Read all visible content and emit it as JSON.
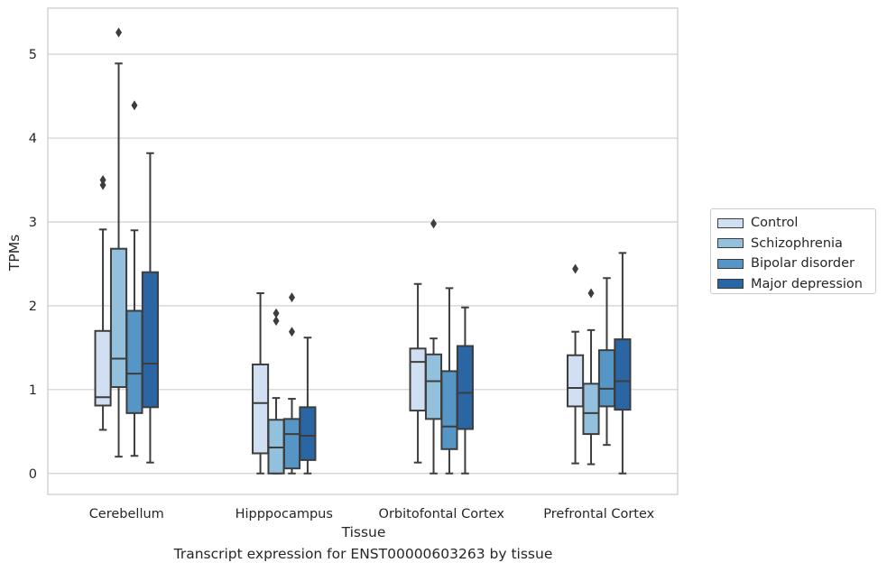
{
  "caption": "Transcript expression for ENST00000603263 by tissue",
  "chart_data": {
    "type": "boxplot",
    "xlabel": "Tissue",
    "ylabel": "TPMs",
    "ylim": [
      -0.25,
      5.55
    ],
    "yticks": [
      0,
      1,
      2,
      3,
      4,
      5
    ],
    "grid": true,
    "legend_position": "right",
    "categories": [
      "Cerebellum",
      "Hipppocampus",
      "Orbitofontal Cortex",
      "Prefrontal Cortex"
    ],
    "series": [
      {
        "name": "Control",
        "color": "#d0e0f2",
        "boxes": [
          {
            "low": 0.52,
            "q1": 0.81,
            "median": 0.91,
            "q3": 1.7,
            "high": 2.91,
            "outliers": [
              3.44,
              3.5
            ]
          },
          {
            "low": 0.0,
            "q1": 0.24,
            "median": 0.84,
            "q3": 1.3,
            "high": 2.15,
            "outliers": []
          },
          {
            "low": 0.13,
            "q1": 0.75,
            "median": 1.33,
            "q3": 1.49,
            "high": 2.26,
            "outliers": []
          },
          {
            "low": 0.12,
            "q1": 0.8,
            "median": 1.02,
            "q3": 1.41,
            "high": 1.69,
            "outliers": [
              2.44
            ]
          }
        ]
      },
      {
        "name": "Schizophrenia",
        "color": "#93c0dc",
        "boxes": [
          {
            "low": 0.2,
            "q1": 1.03,
            "median": 1.37,
            "q3": 2.68,
            "high": 4.89,
            "outliers": [
              5.26
            ]
          },
          {
            "low": 0.0,
            "q1": 0.0,
            "median": 0.31,
            "q3": 0.64,
            "high": 0.9,
            "outliers": [
              1.82,
              1.91
            ]
          },
          {
            "low": 0.0,
            "q1": 0.65,
            "median": 1.1,
            "q3": 1.42,
            "high": 1.61,
            "outliers": [
              2.98
            ]
          },
          {
            "low": 0.11,
            "q1": 0.47,
            "median": 0.72,
            "q3": 1.07,
            "high": 1.71,
            "outliers": [
              2.15
            ]
          }
        ]
      },
      {
        "name": "Bipolar disorder",
        "color": "#5596c7",
        "boxes": [
          {
            "low": 0.21,
            "q1": 0.72,
            "median": 1.19,
            "q3": 1.94,
            "high": 2.9,
            "outliers": [
              4.39
            ]
          },
          {
            "low": 0.0,
            "q1": 0.06,
            "median": 0.47,
            "q3": 0.65,
            "high": 0.89,
            "outliers": [
              1.69,
              2.1
            ]
          },
          {
            "low": 0.0,
            "q1": 0.29,
            "median": 0.56,
            "q3": 1.22,
            "high": 2.21,
            "outliers": []
          },
          {
            "low": 0.34,
            "q1": 0.8,
            "median": 1.01,
            "q3": 1.47,
            "high": 2.33,
            "outliers": []
          }
        ]
      },
      {
        "name": "Major depression",
        "color": "#2a65a4",
        "boxes": [
          {
            "low": 0.13,
            "q1": 0.79,
            "median": 1.31,
            "q3": 2.4,
            "high": 3.82,
            "outliers": []
          },
          {
            "low": 0.0,
            "q1": 0.16,
            "median": 0.45,
            "q3": 0.79,
            "high": 1.62,
            "outliers": []
          },
          {
            "low": 0.0,
            "q1": 0.53,
            "median": 0.96,
            "q3": 1.52,
            "high": 1.98,
            "outliers": []
          },
          {
            "low": 0.0,
            "q1": 0.76,
            "median": 1.1,
            "q3": 1.6,
            "high": 2.63,
            "outliers": []
          }
        ]
      }
    ]
  }
}
